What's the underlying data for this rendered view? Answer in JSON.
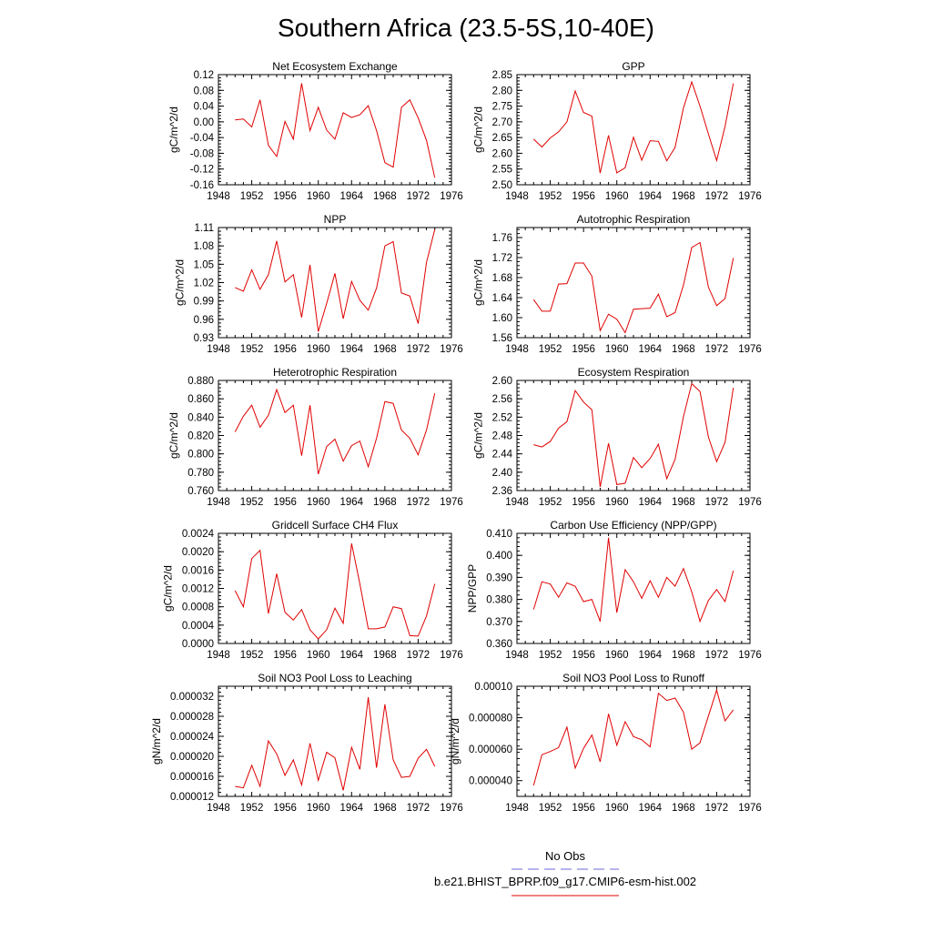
{
  "page_title": "Southern Africa (23.5-5S,10-40E)",
  "legend": [
    {
      "label": "No Obs",
      "color": "#6a6ad8",
      "dash": true
    },
    {
      "label": "b.e21.BHIST_BPRP.f09_g17.CMIP6-esm-hist.002",
      "color": "#e00000",
      "dash": false
    }
  ],
  "chart_data": [
    {
      "type": "line",
      "title": "Net Ecosystem Exchange",
      "ylabel": "gC/m^2/d",
      "xlim": [
        1948,
        1976
      ],
      "xticks": [
        1948,
        1952,
        1956,
        1960,
        1964,
        1968,
        1972,
        1976
      ],
      "xtick_labels": [
        "1948",
        "1952",
        "1956",
        "1960",
        "1964",
        "1968",
        "1972",
        "1976"
      ],
      "ylim": [
        -0.16,
        0.12
      ],
      "yticks": [
        -0.16,
        -0.12,
        -0.08,
        -0.04,
        0.0,
        0.04,
        0.08,
        0.12
      ],
      "ytick_labels": [
        "-0.16",
        "-0.12",
        "-0.08",
        "-0.04",
        "0.00",
        "0.04",
        "0.08",
        "0.12"
      ],
      "color": "#e00000",
      "x": [
        1950,
        1951,
        1952,
        1953,
        1954,
        1955,
        1956,
        1957,
        1958,
        1959,
        1960,
        1961,
        1962,
        1963,
        1964,
        1965,
        1966,
        1967,
        1968,
        1969,
        1970,
        1971,
        1972,
        1973,
        1974
      ],
      "y": [
        0.005,
        0.007,
        -0.013,
        0.056,
        -0.06,
        -0.088,
        0.001,
        -0.044,
        0.098,
        -0.022,
        0.037,
        -0.021,
        -0.044,
        0.023,
        0.011,
        0.018,
        0.041,
        -0.022,
        -0.104,
        -0.115,
        0.037,
        0.056,
        0.01,
        -0.047,
        -0.142
      ]
    },
    {
      "type": "line",
      "title": "GPP",
      "ylabel": "gC/m^2/d",
      "xlim": [
        1948,
        1976
      ],
      "xticks": [
        1948,
        1952,
        1956,
        1960,
        1964,
        1968,
        1972,
        1976
      ],
      "xtick_labels": [
        "1948",
        "1952",
        "1956",
        "1960",
        "1964",
        "1968",
        "1972",
        "1976"
      ],
      "ylim": [
        2.5,
        2.85
      ],
      "yticks": [
        2.5,
        2.55,
        2.6,
        2.65,
        2.7,
        2.75,
        2.8,
        2.85
      ],
      "ytick_labels": [
        "2.50",
        "2.55",
        "2.60",
        "2.65",
        "2.70",
        "2.75",
        "2.80",
        "2.85"
      ],
      "color": "#e00000",
      "x": [
        1950,
        1951,
        1952,
        1953,
        1954,
        1955,
        1956,
        1957,
        1958,
        1959,
        1960,
        1961,
        1962,
        1963,
        1964,
        1965,
        1966,
        1967,
        1968,
        1969,
        1970,
        1971,
        1972,
        1973,
        1974
      ],
      "y": [
        2.645,
        2.62,
        2.649,
        2.668,
        2.7,
        2.798,
        2.73,
        2.718,
        2.537,
        2.657,
        2.538,
        2.554,
        2.651,
        2.578,
        2.64,
        2.638,
        2.576,
        2.619,
        2.744,
        2.827,
        2.75,
        2.662,
        2.577,
        2.685,
        2.822
      ]
    },
    {
      "type": "line",
      "title": "NPP",
      "ylabel": "gC/m^2/d",
      "xlim": [
        1948,
        1976
      ],
      "xticks": [
        1948,
        1952,
        1956,
        1960,
        1964,
        1968,
        1972,
        1976
      ],
      "xtick_labels": [
        "1948",
        "1952",
        "1956",
        "1960",
        "1964",
        "1968",
        "1972",
        "1976"
      ],
      "ylim": [
        0.93,
        1.11
      ],
      "yticks": [
        0.93,
        0.96,
        0.99,
        1.02,
        1.05,
        1.08,
        1.11
      ],
      "ytick_labels": [
        "0.93",
        "0.96",
        "0.99",
        "1.02",
        "1.05",
        "1.08",
        "1.11"
      ],
      "color": "#e00000",
      "x": [
        1950,
        1951,
        1952,
        1953,
        1954,
        1955,
        1956,
        1957,
        1958,
        1959,
        1960,
        1961,
        1962,
        1963,
        1964,
        1965,
        1966,
        1967,
        1968,
        1969,
        1970,
        1971,
        1972,
        1973,
        1974
      ],
      "y": [
        1.012,
        1.006,
        1.041,
        1.009,
        1.033,
        1.088,
        1.021,
        1.033,
        0.963,
        1.049,
        0.94,
        0.986,
        1.035,
        0.961,
        1.022,
        0.991,
        0.975,
        1.011,
        1.08,
        1.087,
        1.003,
        0.998,
        0.953,
        1.053,
        1.107
      ]
    },
    {
      "type": "line",
      "title": "Autotrophic Respiration",
      "ylabel": "gC/m^2/d",
      "xlim": [
        1948,
        1976
      ],
      "xticks": [
        1948,
        1952,
        1956,
        1960,
        1964,
        1968,
        1972,
        1976
      ],
      "xtick_labels": [
        "1948",
        "1952",
        "1956",
        "1960",
        "1964",
        "1968",
        "1972",
        "1976"
      ],
      "ylim": [
        1.56,
        1.78
      ],
      "yticks": [
        1.56,
        1.6,
        1.64,
        1.68,
        1.72,
        1.76
      ],
      "ytick_labels": [
        "1.56",
        "1.60",
        "1.64",
        "1.68",
        "1.72",
        "1.76"
      ],
      "color": "#e00000",
      "x": [
        1950,
        1951,
        1952,
        1953,
        1954,
        1955,
        1956,
        1957,
        1958,
        1959,
        1960,
        1961,
        1962,
        1963,
        1964,
        1965,
        1966,
        1967,
        1968,
        1969,
        1970,
        1971,
        1972,
        1973,
        1974
      ],
      "y": [
        1.636,
        1.613,
        1.613,
        1.667,
        1.668,
        1.709,
        1.709,
        1.683,
        1.574,
        1.607,
        1.597,
        1.57,
        1.617,
        1.618,
        1.619,
        1.647,
        1.602,
        1.61,
        1.665,
        1.74,
        1.75,
        1.661,
        1.624,
        1.638,
        1.719
      ]
    },
    {
      "type": "line",
      "title": "Heterotrophic Respiration",
      "ylabel": "gC/m^2/d",
      "xlim": [
        1948,
        1976
      ],
      "xticks": [
        1948,
        1952,
        1956,
        1960,
        1964,
        1968,
        1972,
        1976
      ],
      "xtick_labels": [
        "1948",
        "1952",
        "1956",
        "1960",
        "1964",
        "1968",
        "1972",
        "1976"
      ],
      "ylim": [
        0.76,
        0.88
      ],
      "yticks": [
        0.76,
        0.78,
        0.8,
        0.82,
        0.84,
        0.86,
        0.88
      ],
      "ytick_labels": [
        "0.760",
        "0.780",
        "0.800",
        "0.820",
        "0.840",
        "0.860",
        "0.880"
      ],
      "color": "#e00000",
      "x": [
        1950,
        1951,
        1952,
        1953,
        1954,
        1955,
        1956,
        1957,
        1958,
        1959,
        1960,
        1961,
        1962,
        1963,
        1964,
        1965,
        1966,
        1967,
        1968,
        1969,
        1970,
        1971,
        1972,
        1973,
        1974
      ],
      "y": [
        0.824,
        0.841,
        0.853,
        0.829,
        0.842,
        0.87,
        0.845,
        0.853,
        0.798,
        0.853,
        0.778,
        0.808,
        0.816,
        0.792,
        0.809,
        0.814,
        0.786,
        0.817,
        0.857,
        0.855,
        0.826,
        0.817,
        0.799,
        0.826,
        0.866
      ]
    },
    {
      "type": "line",
      "title": "Ecosystem Respiration",
      "ylabel": "gC/m^2/d",
      "xlim": [
        1948,
        1976
      ],
      "xticks": [
        1948,
        1952,
        1956,
        1960,
        1964,
        1968,
        1972,
        1976
      ],
      "xtick_labels": [
        "1948",
        "1952",
        "1956",
        "1960",
        "1964",
        "1968",
        "1972",
        "1976"
      ],
      "ylim": [
        2.36,
        2.6
      ],
      "yticks": [
        2.36,
        2.4,
        2.44,
        2.48,
        2.52,
        2.56,
        2.6
      ],
      "ytick_labels": [
        "2.36",
        "2.40",
        "2.44",
        "2.48",
        "2.52",
        "2.56",
        "2.60"
      ],
      "color": "#e00000",
      "x": [
        1950,
        1951,
        1952,
        1953,
        1954,
        1955,
        1956,
        1957,
        1958,
        1959,
        1960,
        1961,
        1962,
        1963,
        1964,
        1965,
        1966,
        1967,
        1968,
        1969,
        1970,
        1971,
        1972,
        1973,
        1974
      ],
      "y": [
        2.46,
        2.455,
        2.467,
        2.496,
        2.51,
        2.578,
        2.553,
        2.536,
        2.368,
        2.463,
        2.373,
        2.376,
        2.432,
        2.41,
        2.43,
        2.461,
        2.386,
        2.428,
        2.521,
        2.593,
        2.576,
        2.477,
        2.423,
        2.465,
        2.584
      ]
    },
    {
      "type": "line",
      "title": "Gridcell Surface CH4 Flux",
      "ylabel": "gC/m^2/d",
      "xlim": [
        1948,
        1976
      ],
      "xticks": [
        1948,
        1952,
        1956,
        1960,
        1964,
        1968,
        1972,
        1976
      ],
      "xtick_labels": [
        "1948",
        "1952",
        "1956",
        "1960",
        "1964",
        "1968",
        "1972",
        "1976"
      ],
      "ylim": [
        0.0,
        0.0024
      ],
      "yticks": [
        0.0,
        0.0004,
        0.0008,
        0.0012,
        0.0016,
        0.002,
        0.0024
      ],
      "ytick_labels": [
        "0.0000",
        "0.0004",
        "0.0008",
        "0.0012",
        "0.0016",
        "0.0020",
        "0.0024"
      ],
      "color": "#e00000",
      "x": [
        1950,
        1951,
        1952,
        1953,
        1954,
        1955,
        1956,
        1957,
        1958,
        1959,
        1960,
        1961,
        1962,
        1963,
        1964,
        1965,
        1966,
        1967,
        1968,
        1969,
        1970,
        1971,
        1972,
        1973,
        1974
      ],
      "y": [
        0.00115,
        0.0008,
        0.00185,
        0.00203,
        0.00065,
        0.00152,
        0.00068,
        0.00051,
        0.00074,
        0.0003,
        0.0001,
        0.0003,
        0.00077,
        0.00044,
        0.00218,
        0.0013,
        0.00032,
        0.00032,
        0.00036,
        0.0008,
        0.00076,
        0.00017,
        0.00016,
        0.0006,
        0.0013
      ]
    },
    {
      "type": "line",
      "title": "Carbon Use Efficiency (NPP/GPP)",
      "ylabel": "NPP/GPP",
      "xlim": [
        1948,
        1976
      ],
      "xticks": [
        1948,
        1952,
        1956,
        1960,
        1964,
        1968,
        1972,
        1976
      ],
      "xtick_labels": [
        "1948",
        "1952",
        "1956",
        "1960",
        "1964",
        "1968",
        "1972",
        "1976"
      ],
      "ylim": [
        0.36,
        0.41
      ],
      "yticks": [
        0.36,
        0.37,
        0.38,
        0.39,
        0.4,
        0.41
      ],
      "ytick_labels": [
        "0.360",
        "0.370",
        "0.380",
        "0.390",
        "0.400",
        "0.410"
      ],
      "color": "#e00000",
      "x": [
        1950,
        1951,
        1952,
        1953,
        1954,
        1955,
        1956,
        1957,
        1958,
        1959,
        1960,
        1961,
        1962,
        1963,
        1964,
        1965,
        1966,
        1967,
        1968,
        1969,
        1970,
        1971,
        1972,
        1973,
        1974
      ],
      "y": [
        0.3755,
        0.388,
        0.387,
        0.381,
        0.3875,
        0.386,
        0.379,
        0.38,
        0.37,
        0.408,
        0.374,
        0.3935,
        0.388,
        0.3805,
        0.3885,
        0.381,
        0.39,
        0.386,
        0.394,
        0.3835,
        0.37,
        0.3795,
        0.3845,
        0.379,
        0.393
      ]
    },
    {
      "type": "line",
      "title": "Soil NO3 Pool Loss to Leaching",
      "ylabel": "gN/m^2/d",
      "xlim": [
        1948,
        1976
      ],
      "xticks": [
        1948,
        1952,
        1956,
        1960,
        1964,
        1968,
        1972,
        1976
      ],
      "xtick_labels": [
        "1948",
        "1952",
        "1956",
        "1960",
        "1964",
        "1968",
        "1972",
        "1976"
      ],
      "ylim": [
        1.2e-05,
        3.4e-05
      ],
      "yticks": [
        1.2e-05,
        1.6e-05,
        2e-05,
        2.4e-05,
        2.8e-05,
        3.2e-05
      ],
      "ytick_labels": [
        "0.000012",
        "0.000016",
        "0.000020",
        "0.000024",
        "0.000028",
        "0.000032"
      ],
      "color": "#e00000",
      "x": [
        1950,
        1951,
        1952,
        1953,
        1954,
        1955,
        1956,
        1957,
        1958,
        1959,
        1960,
        1961,
        1962,
        1963,
        1964,
        1965,
        1966,
        1967,
        1968,
        1969,
        1970,
        1971,
        1972,
        1973,
        1974
      ],
      "y": [
        1.4e-05,
        1.37e-05,
        1.82e-05,
        1.4e-05,
        2.31e-05,
        2.05e-05,
        1.62e-05,
        1.93e-05,
        1.43e-05,
        2.26e-05,
        1.52e-05,
        2.08e-05,
        1.97e-05,
        1.32e-05,
        2.18e-05,
        1.74e-05,
        3.18e-05,
        1.77e-05,
        3.04e-05,
        1.93e-05,
        1.58e-05,
        1.6e-05,
        1.96e-05,
        2.14e-05,
        1.8e-05
      ]
    },
    {
      "type": "line",
      "title": "Soil NO3 Pool Loss to Runoff",
      "ylabel": "gN/m^2/d",
      "xlim": [
        1948,
        1976
      ],
      "xticks": [
        1948,
        1952,
        1956,
        1960,
        1964,
        1968,
        1972,
        1976
      ],
      "xtick_labels": [
        "1948",
        "1952",
        "1956",
        "1960",
        "1964",
        "1968",
        "1972",
        "1976"
      ],
      "ylim": [
        3e-05,
        0.0001
      ],
      "yticks": [
        4e-05,
        6e-05,
        8e-05,
        0.0001
      ],
      "ytick_labels": [
        "0.000040",
        "0.000060",
        "0.000080",
        "0.00010"
      ],
      "color": "#e00000",
      "x": [
        1950,
        1951,
        1952,
        1953,
        1954,
        1955,
        1956,
        1957,
        1958,
        1959,
        1960,
        1961,
        1962,
        1963,
        1964,
        1965,
        1966,
        1967,
        1968,
        1969,
        1970,
        1971,
        1972,
        1973,
        1974
      ],
      "y": [
        3.7e-05,
        5.65e-05,
        5.85e-05,
        6.1e-05,
        7.4e-05,
        4.8e-05,
        6.05e-05,
        6.9e-05,
        5.2e-05,
        8.25e-05,
        6.25e-05,
        7.75e-05,
        6.8e-05,
        6.6e-05,
        6.15e-05,
        9.55e-05,
        9.1e-05,
        9.25e-05,
        8.35e-05,
        6e-05,
        6.4e-05,
        8.1e-05,
        9.75e-05,
        7.8e-05,
        8.5e-05
      ]
    }
  ]
}
